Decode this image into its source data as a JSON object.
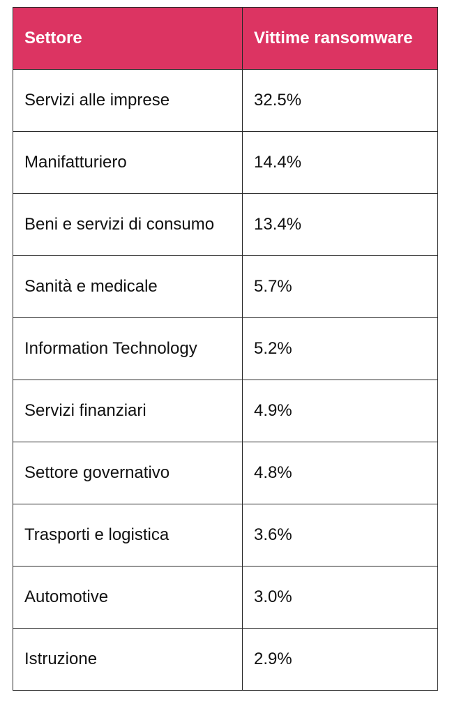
{
  "header": {
    "col1": "Settore",
    "col2": "Vittime ransomware",
    "background": "#dc3462"
  },
  "rows": [
    {
      "sector": "Servizi alle imprese",
      "value": "32.5%"
    },
    {
      "sector": "Manifatturiero",
      "value": "14.4%"
    },
    {
      "sector": "Beni e servizi di consumo",
      "value": "13.4%"
    },
    {
      "sector": "Sanità e medicale",
      "value": "5.7%"
    },
    {
      "sector": "Information Technology",
      "value": "5.2%"
    },
    {
      "sector": "Servizi finanziari",
      "value": "4.9%"
    },
    {
      "sector": "Settore governativo",
      "value": "4.8%"
    },
    {
      "sector": "Trasporti e logistica",
      "value": "3.6%"
    },
    {
      "sector": "Automotive",
      "value": "3.0%"
    },
    {
      "sector": "Istruzione",
      "value": "2.9%"
    }
  ]
}
